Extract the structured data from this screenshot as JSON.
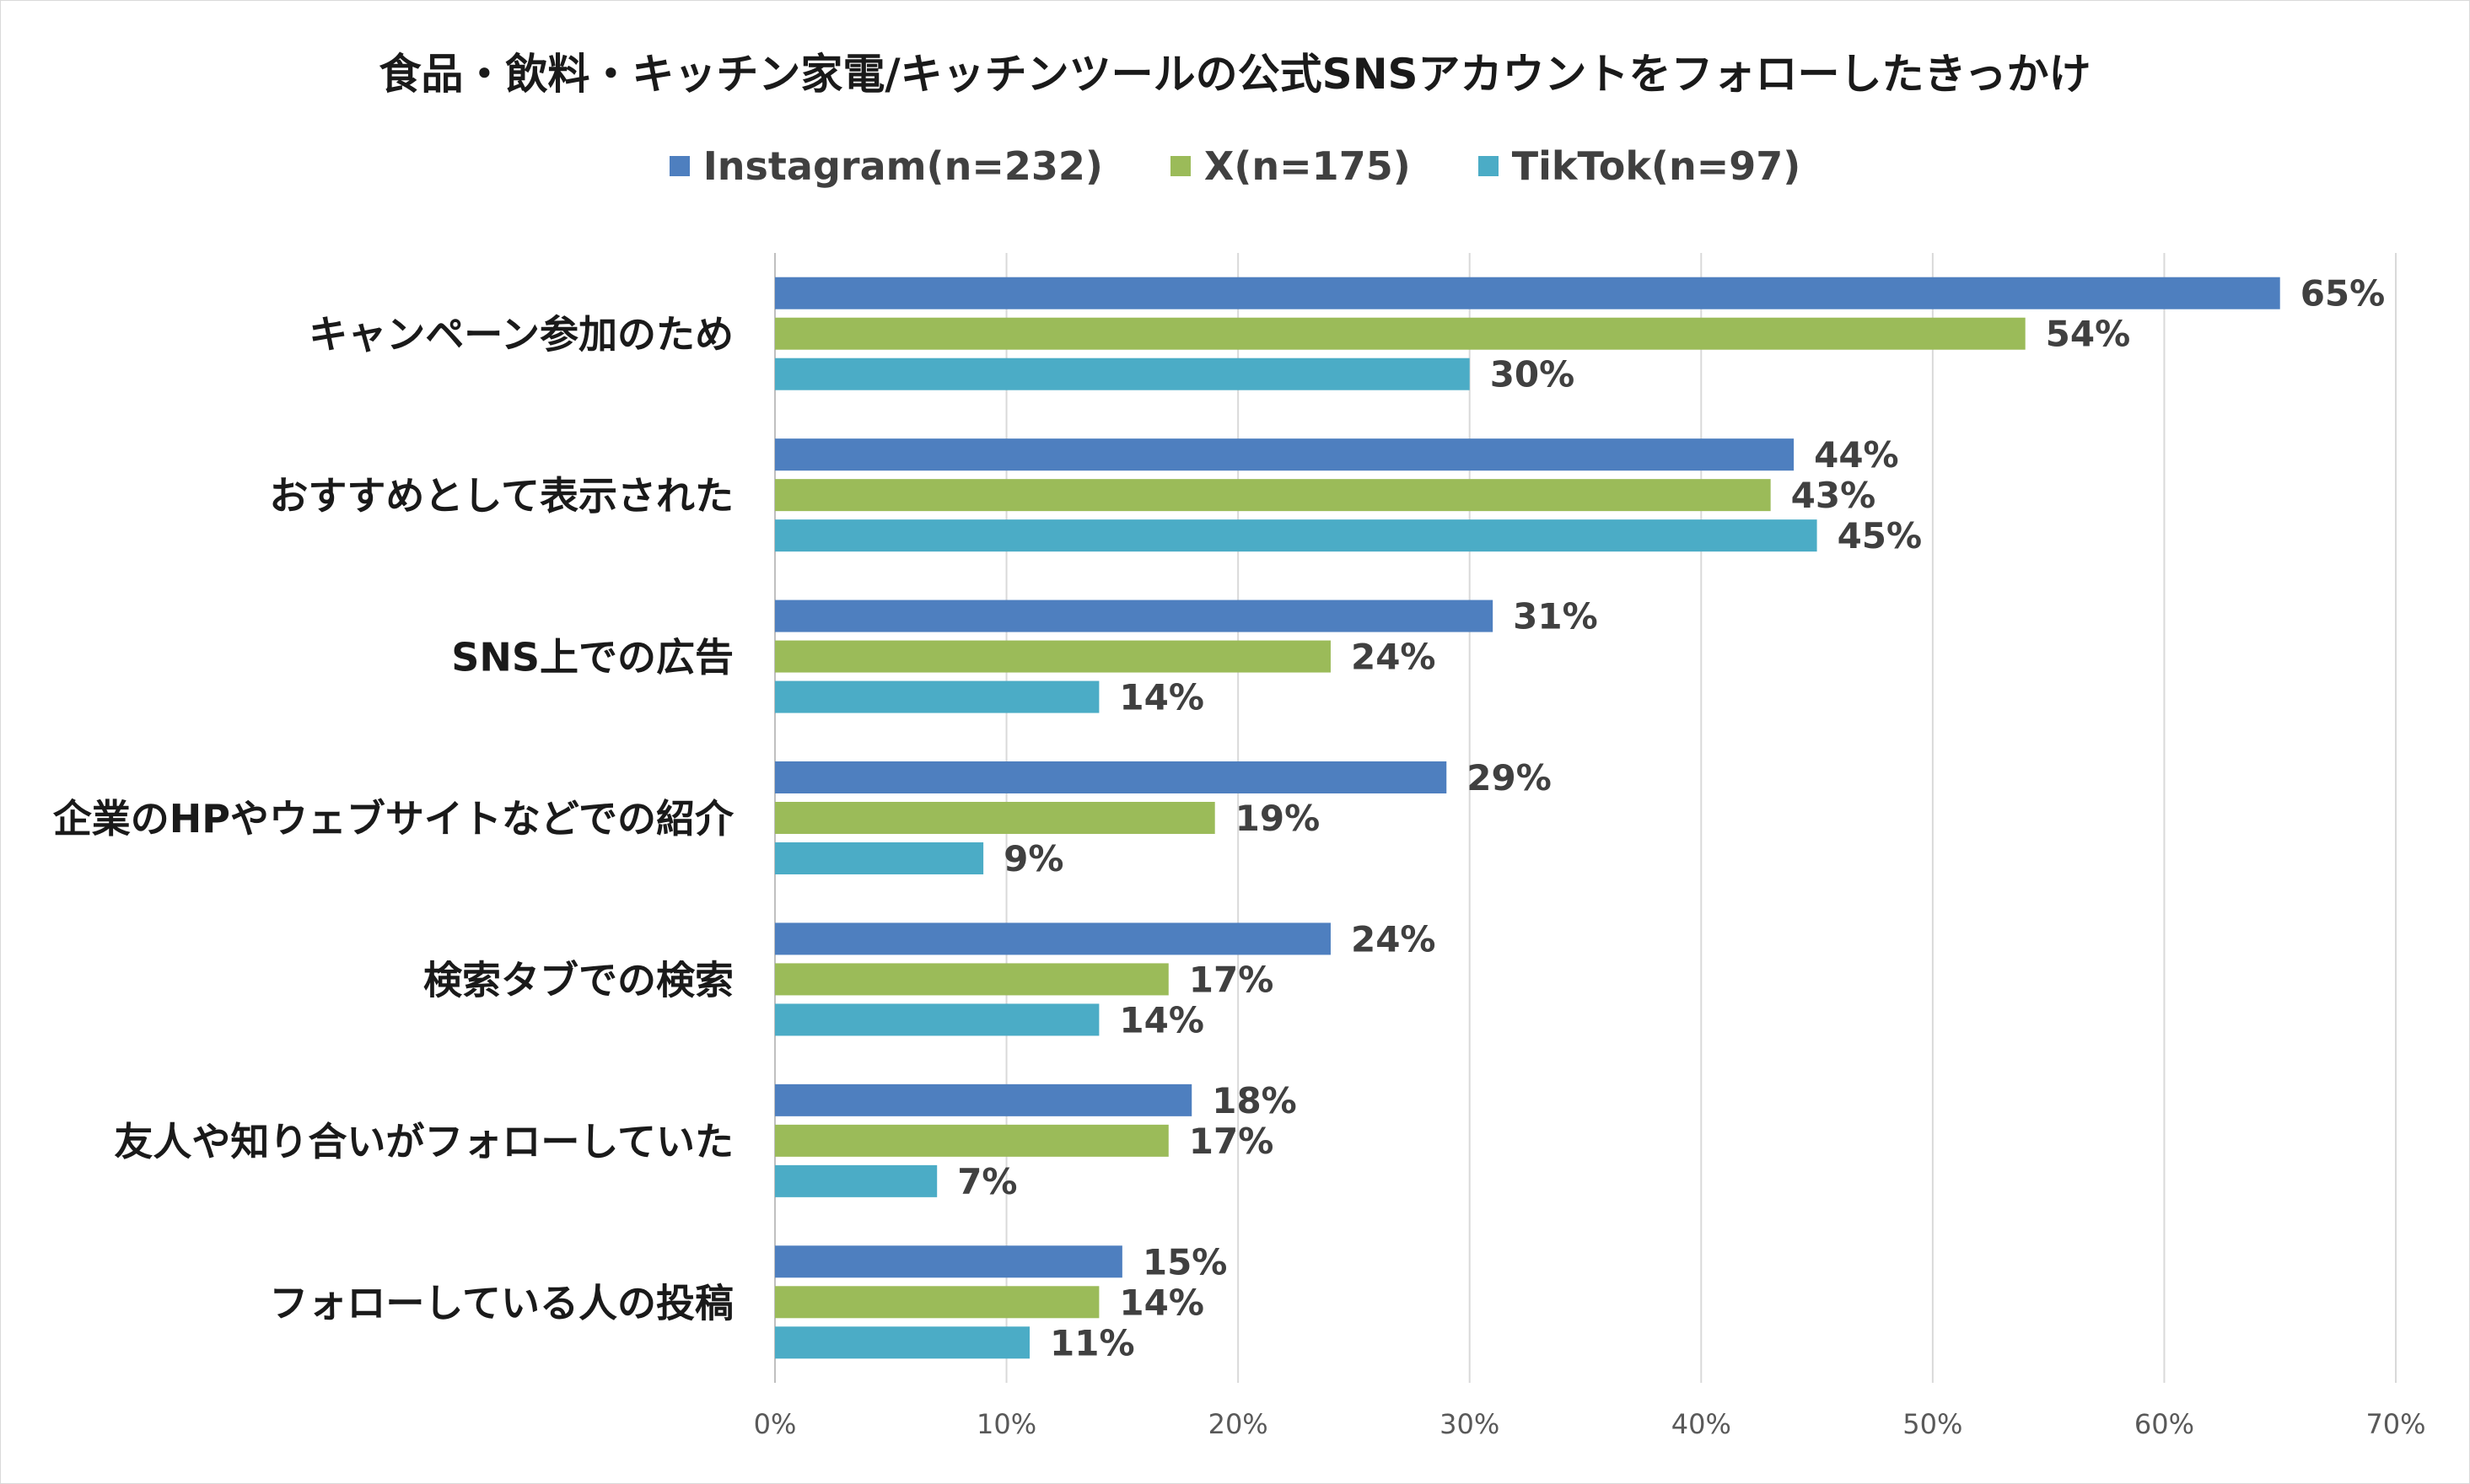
{
  "chart_data": {
    "type": "bar",
    "orientation": "horizontal",
    "title": "食品・飲料・キッチン家電/キッチンツールの公式SNSアカウントをフォローしたきっかけ",
    "categories": [
      "キャンペーン参加のため",
      "おすすめとして表示された",
      "SNS上での広告",
      "企業のHPやウェブサイトなどでの紹介",
      "検索タブでの検索",
      "友人や知り合いがフォローしていた",
      "フォローしている人の投稿"
    ],
    "series": [
      {
        "name": "Instagram(n=232)",
        "color": "#4e7fbf",
        "values": [
          65,
          44,
          31,
          29,
          24,
          18,
          15
        ]
      },
      {
        "name": "X(n=175)",
        "color": "#9bbb59",
        "values": [
          54,
          43,
          24,
          19,
          17,
          17,
          14
        ]
      },
      {
        "name": "TikTok(n=97)",
        "color": "#4bacc6",
        "values": [
          30,
          45,
          14,
          9,
          14,
          7,
          11
        ]
      }
    ],
    "value_suffix": "%",
    "xlim": [
      0,
      70
    ],
    "xticks": [
      "0%",
      "10%",
      "20%",
      "30%",
      "40%",
      "50%",
      "60%",
      "70%"
    ],
    "grid": true,
    "legend_position": "top"
  }
}
